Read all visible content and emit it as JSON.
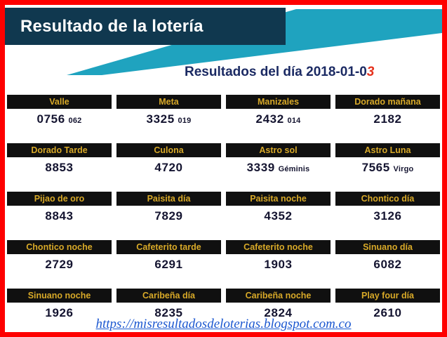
{
  "header": {
    "title": "Resultado de la lotería",
    "subtitle_prefix": "Resultados del día 2018-01-0",
    "subtitle_accent": "3"
  },
  "results": [
    {
      "name": "Valle",
      "value": "0756",
      "sub": "062"
    },
    {
      "name": "Meta",
      "value": "3325",
      "sub": "019"
    },
    {
      "name": "Manizales",
      "value": "2432",
      "sub": "014"
    },
    {
      "name": "Dorado mañana",
      "value": "2182"
    },
    {
      "name": "Dorado Tarde",
      "value": "8853"
    },
    {
      "name": "Culona",
      "value": "4720"
    },
    {
      "name": "Astro sol",
      "value": "3339",
      "sub": "Géminis"
    },
    {
      "name": "Astro Luna",
      "value": "7565",
      "sub": "Virgo"
    },
    {
      "name": "Pijao de oro",
      "value": "8843"
    },
    {
      "name": "Paisita día",
      "value": "7829"
    },
    {
      "name": "Paisita noche",
      "value": "4352"
    },
    {
      "name": "Chontico día",
      "value": "3126"
    },
    {
      "name": "Chontico noche",
      "value": "2729"
    },
    {
      "name": "Cafeterito tarde",
      "value": "6291"
    },
    {
      "name": "Cafeterito noche",
      "value": "1903"
    },
    {
      "name": "Sinuano día",
      "value": "6082"
    },
    {
      "name": "Sinuano noche",
      "value": "1926"
    },
    {
      "name": "Caribeña día",
      "value": "8235"
    },
    {
      "name": "Caribeña noche",
      "value": "2824"
    },
    {
      "name": "Play four día",
      "value": "2610"
    }
  ],
  "footer": {
    "link_text": "https://misresultadosdeloterias.blogspot.com.co"
  },
  "colors": {
    "page_border": "#fe0000",
    "header_band": "#10384f",
    "header_accent": "#1fa3bf",
    "cell_header_bg": "#101010",
    "cell_header_text": "#d8a928",
    "value_text": "#141430",
    "subtitle_text": "#1b2a63",
    "subtitle_accent": "#e5311c",
    "link": "#1b57d0"
  }
}
